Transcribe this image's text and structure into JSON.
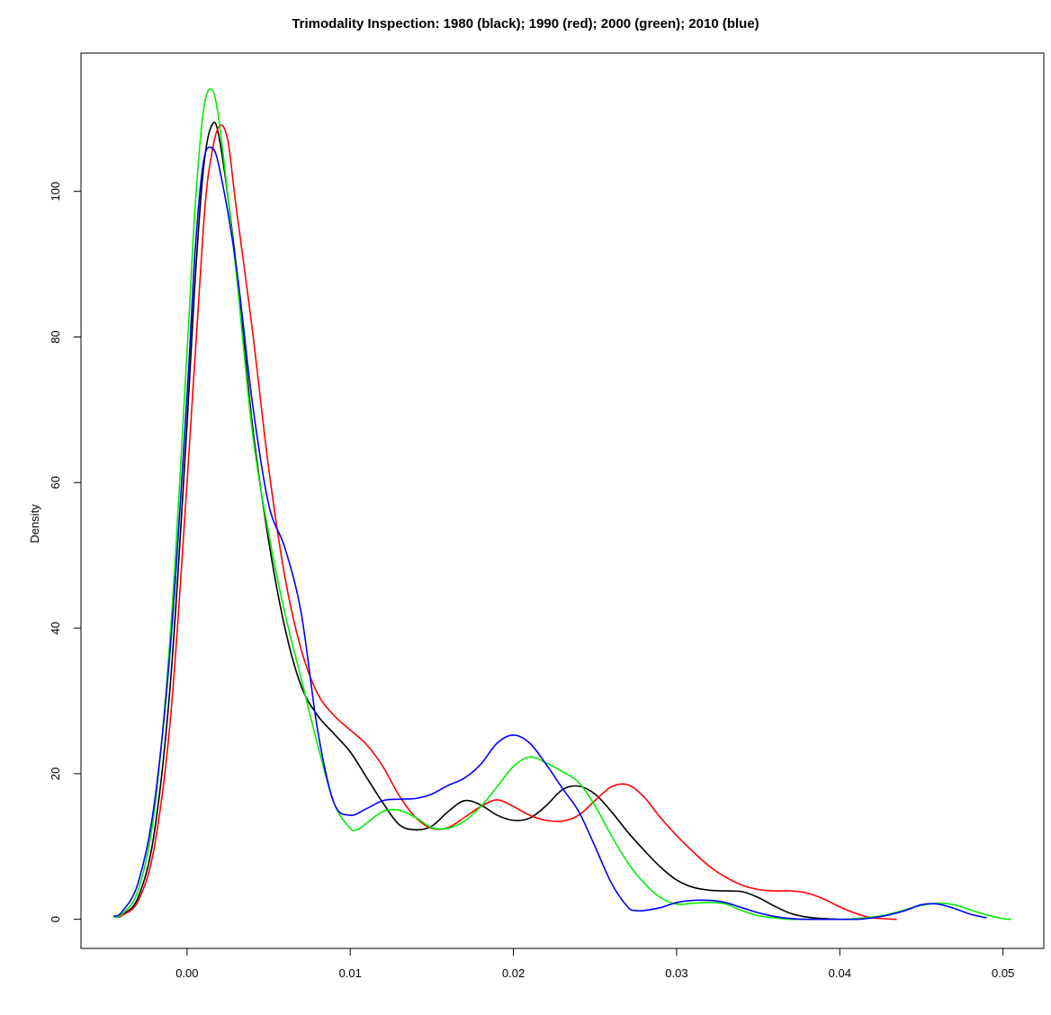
{
  "chart_data": {
    "type": "line",
    "title": "Trimodality Inspection: 1980 (black); 1990 (red); 2000 (green); 2010 (blue)",
    "xlabel": "",
    "ylabel": "Density",
    "xlim": [
      -0.0065,
      0.0525
    ],
    "ylim": [
      -4,
      119
    ],
    "x_ticks": [
      0.0,
      0.01,
      0.02,
      0.03,
      0.04,
      0.05
    ],
    "x_tick_labels": [
      "0.00",
      "0.01",
      "0.02",
      "0.03",
      "0.04",
      "0.05"
    ],
    "y_ticks": [
      0,
      20,
      40,
      60,
      80,
      100
    ],
    "y_tick_labels": [
      "0",
      "20",
      "40",
      "60",
      "80",
      "100"
    ],
    "grid": false,
    "series": [
      {
        "color": "#000000",
        "x": [
          -0.0043,
          -0.004,
          -0.003,
          -0.002,
          -0.001,
          0.0,
          0.0005,
          0.001,
          0.0015,
          0.002,
          0.003,
          0.004,
          0.005,
          0.006,
          0.007,
          0.008,
          0.009,
          0.01,
          0.011,
          0.012,
          0.013,
          0.014,
          0.015,
          0.016,
          0.017,
          0.018,
          0.019,
          0.02,
          0.021,
          0.022,
          0.023,
          0.024,
          0.025,
          0.026,
          0.027,
          0.028,
          0.029,
          0.03,
          0.031,
          0.032,
          0.033,
          0.034,
          0.035,
          0.036,
          0.037,
          0.038,
          0.039,
          0.04
        ],
        "y": [
          0.3,
          0.6,
          3,
          12,
          33,
          68,
          88,
          103,
          109,
          107,
          90,
          68,
          52,
          40,
          32,
          28,
          25.5,
          23,
          19.5,
          16,
          13,
          12.3,
          12.8,
          14.8,
          16.3,
          15.7,
          14.3,
          13.6,
          13.9,
          15.6,
          17.8,
          18.3,
          17.2,
          14.8,
          12,
          9.5,
          7.2,
          5.4,
          4.4,
          4.0,
          3.9,
          3.8,
          3.0,
          1.8,
          0.8,
          0.3,
          0.1,
          0.0
        ]
      },
      {
        "color": "#ff0000",
        "x": [
          -0.0042,
          -0.004,
          -0.003,
          -0.002,
          -0.001,
          0.0,
          0.001,
          0.0015,
          0.002,
          0.0025,
          0.003,
          0.004,
          0.005,
          0.006,
          0.007,
          0.008,
          0.009,
          0.01,
          0.011,
          0.012,
          0.013,
          0.014,
          0.015,
          0.016,
          0.017,
          0.018,
          0.019,
          0.02,
          0.021,
          0.022,
          0.023,
          0.024,
          0.025,
          0.026,
          0.027,
          0.028,
          0.029,
          0.03,
          0.031,
          0.032,
          0.033,
          0.034,
          0.035,
          0.036,
          0.037,
          0.038,
          0.039,
          0.04,
          0.041,
          0.042,
          0.0435
        ],
        "y": [
          0.3,
          0.5,
          2.5,
          10,
          28,
          60,
          95,
          105,
          109,
          107,
          98,
          81,
          62,
          47,
          37,
          31,
          28,
          26,
          24,
          21,
          17,
          14,
          12.5,
          12.6,
          14,
          15.5,
          16.4,
          15.5,
          14.3,
          13.6,
          13.5,
          14.3,
          16.3,
          18.2,
          18.5,
          16.8,
          14,
          11.5,
          9.3,
          7.3,
          5.8,
          4.7,
          4.1,
          3.9,
          3.9,
          3.6,
          2.8,
          1.7,
          0.8,
          0.2,
          0.0
        ]
      },
      {
        "color": "#00ee00",
        "x": [
          -0.0045,
          -0.004,
          -0.003,
          -0.002,
          -0.001,
          0.0,
          0.0005,
          0.001,
          0.0015,
          0.002,
          0.003,
          0.004,
          0.005,
          0.006,
          0.007,
          0.008,
          0.009,
          0.01,
          0.0105,
          0.011,
          0.012,
          0.013,
          0.014,
          0.015,
          0.016,
          0.017,
          0.018,
          0.019,
          0.02,
          0.021,
          0.022,
          0.023,
          0.024,
          0.025,
          0.026,
          0.027,
          0.028,
          0.029,
          0.03,
          0.031,
          0.032,
          0.033,
          0.034,
          0.035,
          0.036,
          0.037,
          0.038,
          0.039,
          0.04,
          0.041,
          0.042,
          0.043,
          0.044,
          0.045,
          0.046,
          0.047,
          0.048,
          0.049,
          0.05,
          0.0505
        ],
        "y": [
          0.3,
          0.7,
          4,
          15,
          40,
          78,
          98,
          111,
          114,
          109,
          89,
          67,
          53,
          42,
          33,
          24,
          16,
          12.5,
          12.4,
          13.2,
          14.8,
          15,
          14,
          12.6,
          12.5,
          13.5,
          15.5,
          18.2,
          21,
          22.3,
          21.5,
          20.3,
          18.8,
          15.6,
          11.5,
          7.8,
          5,
          3,
          2.1,
          2.2,
          2.3,
          2.1,
          1.2,
          0.5,
          0.2,
          0.0,
          0.0,
          0.0,
          0.0,
          0.1,
          0.3,
          0.7,
          1.3,
          1.9,
          2.2,
          2.0,
          1.3,
          0.6,
          0.1,
          0.0
        ]
      },
      {
        "color": "#0000ff",
        "x": [
          -0.0045,
          -0.004,
          -0.003,
          -0.002,
          -0.001,
          0.0,
          0.0005,
          0.001,
          0.0015,
          0.002,
          0.003,
          0.004,
          0.005,
          0.006,
          0.007,
          0.008,
          0.009,
          0.01,
          0.011,
          0.012,
          0.013,
          0.014,
          0.015,
          0.016,
          0.017,
          0.018,
          0.019,
          0.02,
          0.021,
          0.022,
          0.023,
          0.024,
          0.025,
          0.026,
          0.027,
          0.0275,
          0.028,
          0.029,
          0.03,
          0.031,
          0.032,
          0.033,
          0.034,
          0.035,
          0.036,
          0.037,
          0.038,
          0.039,
          0.04,
          0.041,
          0.042,
          0.043,
          0.044,
          0.045,
          0.046,
          0.047,
          0.048,
          0.049
        ],
        "y": [
          0.4,
          1,
          5,
          16,
          38,
          72,
          92,
          104,
          106,
          103,
          90,
          71,
          57,
          51,
          42,
          26,
          16,
          14.3,
          15.2,
          16.3,
          16.5,
          16.6,
          17.2,
          18.4,
          19.4,
          21.3,
          24.2,
          25.3,
          24.2,
          21.3,
          18,
          14.8,
          10,
          5,
          1.7,
          1.2,
          1.2,
          1.6,
          2.3,
          2.6,
          2.6,
          2.3,
          1.6,
          0.9,
          0.4,
          0.1,
          0.0,
          0.0,
          0.0,
          0.0,
          0.2,
          0.6,
          1.2,
          2.0,
          2.1,
          1.5,
          0.7,
          0.2
        ]
      }
    ]
  }
}
